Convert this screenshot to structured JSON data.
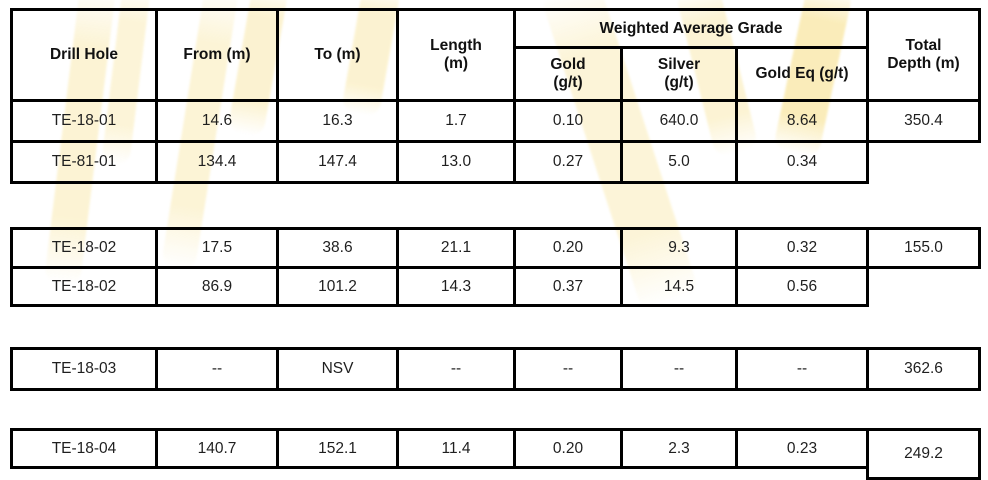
{
  "colors": {
    "highlight_yellow": "#F8E49A",
    "border_black": "#000000",
    "background": "#FFFFFF",
    "text": "#1F1F1F"
  },
  "table": {
    "headers": {
      "drill_hole": "Drill Hole",
      "from": "From (m)",
      "to": "To (m)",
      "length": "Length\n(m)",
      "weighted_average_grade": "Weighted Average Grade",
      "gold": "Gold\n(g/t)",
      "silver": "Silver\n(g/t)",
      "gold_eq": "Gold Eq (g/t)",
      "total_depth": "Total\nDepth (m)"
    },
    "groups": [
      {
        "rows": [
          [
            "TE-18-01",
            "14.6",
            "16.3",
            "1.7",
            "0.10",
            "640.0",
            "8.64",
            "350.4"
          ],
          [
            "TE-81-01",
            "134.4",
            "147.4",
            "13.0",
            "0.27",
            "5.0",
            "0.34",
            null
          ]
        ]
      },
      {
        "rows": [
          [
            "TE-18-02",
            "17.5",
            "38.6",
            "21.1",
            "0.20",
            "9.3",
            "0.32",
            "155.0"
          ],
          [
            "TE-18-02",
            "86.9",
            "101.2",
            "14.3",
            "0.37",
            "14.5",
            "0.56",
            null
          ]
        ]
      },
      {
        "rows": [
          [
            "TE-18-03",
            "--",
            "NSV",
            "--",
            "--",
            "--",
            "--",
            "362.6"
          ]
        ]
      },
      {
        "rows": [
          [
            "TE-18-04",
            "140.7",
            "152.1",
            "11.4",
            "0.20",
            "2.3",
            "0.23",
            "249.2"
          ]
        ]
      }
    ]
  }
}
